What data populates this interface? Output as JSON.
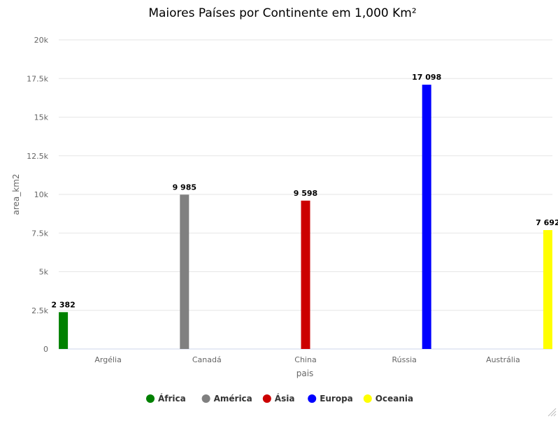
{
  "chart_data": {
    "type": "bar",
    "title": "Maiores Países por Continente em 1,000 Km²",
    "xlabel": "pais",
    "ylabel": "area_km2",
    "ylim": [
      0,
      20000
    ],
    "yticks": [
      0,
      2500,
      5000,
      7500,
      10000,
      12500,
      15000,
      17500,
      20000
    ],
    "ytick_labels": [
      "0",
      "2.5k",
      "5k",
      "7.5k",
      "10k",
      "12.5k",
      "15k",
      "17.5k",
      "20k"
    ],
    "categories": [
      "Argélia",
      "Canadá",
      "China",
      "Rússia",
      "Austrália"
    ],
    "series": [
      {
        "name": "África",
        "color": "#008000",
        "values": [
          2382,
          null,
          null,
          null,
          null
        ]
      },
      {
        "name": "América",
        "color": "#808080",
        "values": [
          null,
          9985,
          null,
          null,
          null
        ]
      },
      {
        "name": "Ásia",
        "color": "#cc0000",
        "values": [
          null,
          null,
          9598,
          null,
          null
        ]
      },
      {
        "name": "Europa",
        "color": "#0000ff",
        "values": [
          null,
          null,
          null,
          17098,
          null
        ]
      },
      {
        "name": "Oceania",
        "color": "#ffff00",
        "values": [
          null,
          null,
          null,
          null,
          7692
        ]
      }
    ],
    "data_labels": [
      "2 382",
      "9 985",
      "9 598",
      "17 098",
      "7 692"
    ],
    "grid": true,
    "legend_position": "bottom-center"
  }
}
